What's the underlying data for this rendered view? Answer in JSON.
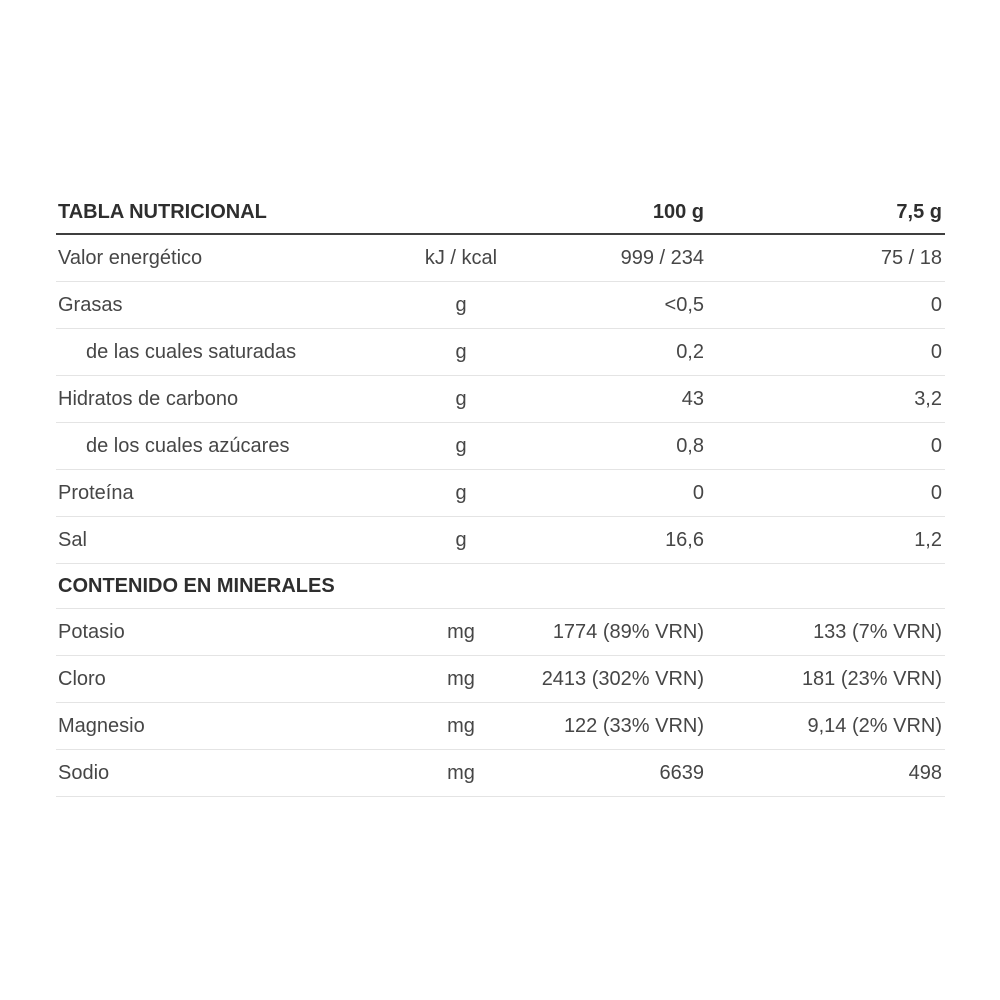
{
  "table": {
    "title": "TABLA NUTRICIONAL",
    "columns": {
      "per_100g": "100 g",
      "per_serving": "7,5 g"
    },
    "rows": [
      {
        "label": "Valor energético",
        "unit": "kJ / kcal",
        "per100": "999 / 234",
        "perServing": "75 / 18"
      },
      {
        "label": "Grasas",
        "unit": "g",
        "per100": "<0,5",
        "perServing": "0"
      },
      {
        "label": "de las cuales saturadas",
        "unit": "g",
        "per100": "0,2",
        "perServing": "0"
      },
      {
        "label": "Hidratos de carbono",
        "unit": "g",
        "per100": "43",
        "perServing": "3,2"
      },
      {
        "label": "de los cuales azúcares",
        "unit": "g",
        "per100": "0,8",
        "perServing": "0"
      },
      {
        "label": "Proteína",
        "unit": "g",
        "per100": "0",
        "perServing": "0"
      },
      {
        "label": "Sal",
        "unit": "g",
        "per100": "16,6",
        "perServing": "1,2"
      }
    ],
    "minerals_header": "CONTENIDO EN MINERALES",
    "mineral_rows": [
      {
        "label": "Potasio",
        "unit": "mg",
        "per100": "1774 (89% VRN)",
        "perServing": "133 (7% VRN)"
      },
      {
        "label": "Cloro",
        "unit": "mg",
        "per100": "2413 (302% VRN)",
        "perServing": "181 (23% VRN)"
      },
      {
        "label": "Magnesio",
        "unit": "mg",
        "per100": "122 (33% VRN)",
        "perServing": "9,14 (2% VRN)"
      },
      {
        "label": "Sodio",
        "unit": "mg",
        "per100": "6639",
        "perServing": "498"
      }
    ]
  }
}
